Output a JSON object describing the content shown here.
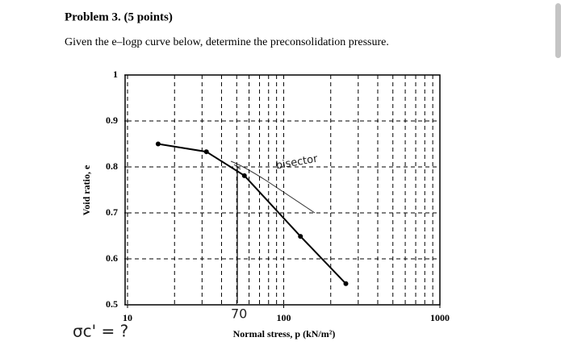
{
  "header": {
    "title": "Problem 3. (5 points)"
  },
  "question": "Given the e–logp curve below, determine the preconsolidation pressure.",
  "chart_data": {
    "type": "line",
    "x_label": "Normal stress, p (kN/m²)",
    "y_label": "Void ratio, e",
    "x": [
      15.7,
      32,
      56,
      128,
      250
    ],
    "series": [
      {
        "name": "e–logp curve",
        "color": "#000000",
        "values": [
          0.85,
          0.833,
          0.781,
          0.649,
          0.546
        ]
      }
    ],
    "xlim": [
      10,
      1000
    ],
    "xticks": [
      10,
      100,
      1000
    ],
    "xscale": "log",
    "ylim": [
      0.5,
      1
    ],
    "yticks": [
      1,
      0.9,
      0.8,
      0.7,
      0.6,
      0.5
    ],
    "grid": true
  },
  "annotations": {
    "bisector": "bisector",
    "pressure": "70",
    "answer": "σc' = ?"
  }
}
